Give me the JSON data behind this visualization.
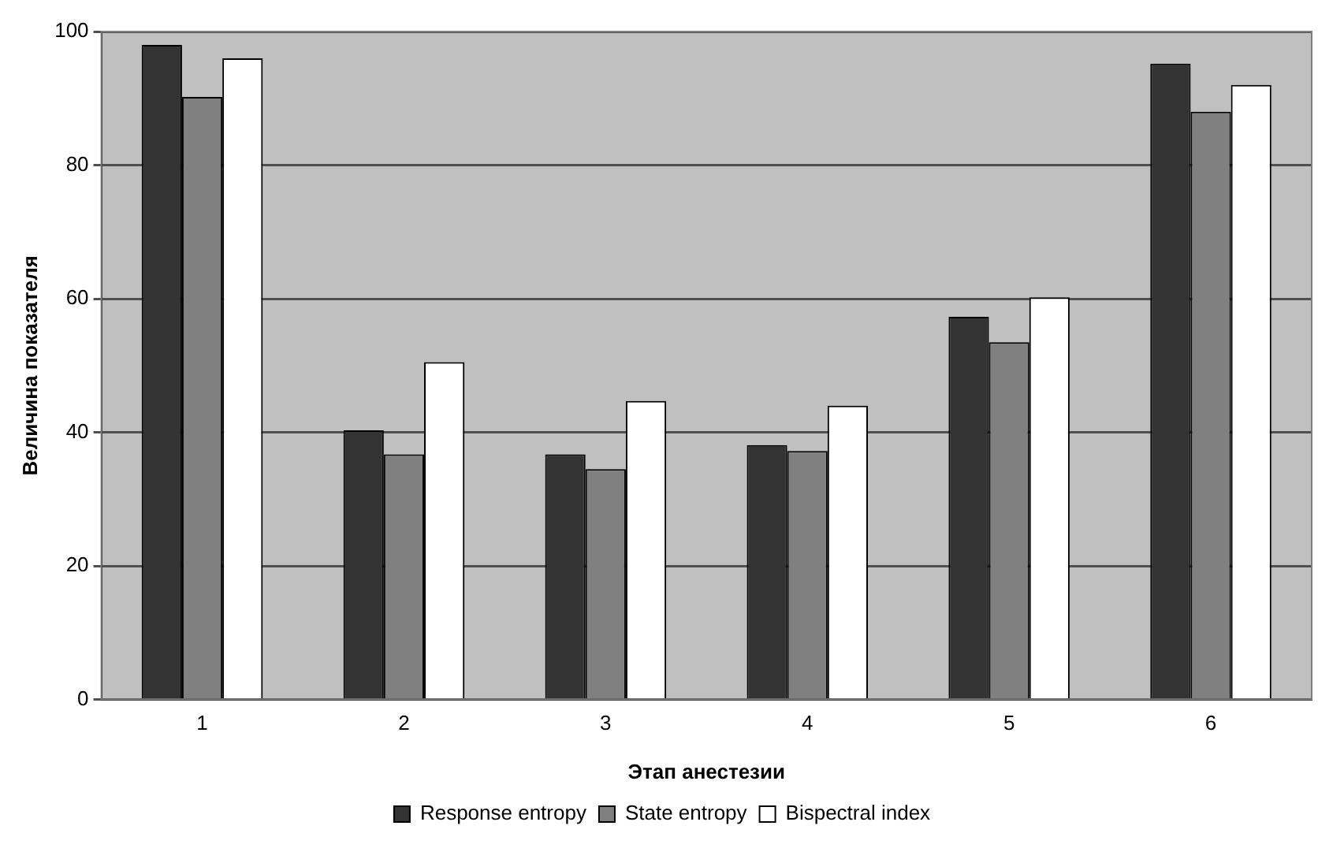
{
  "chart_data": {
    "type": "bar",
    "xlabel": "Этап анестезии",
    "ylabel": "Величина показателя",
    "categories": [
      "1",
      "2",
      "3",
      "4",
      "5",
      "6"
    ],
    "series": [
      {
        "name": "Response entropy",
        "color": "#333333",
        "values": [
          98,
          40.3,
          36.7,
          38.1,
          57.3,
          95.2
        ]
      },
      {
        "name": "State entropy",
        "color": "#808080",
        "values": [
          90.2,
          36.7,
          34.5,
          37.2,
          53.5,
          88
        ]
      },
      {
        "name": "Bispectral index",
        "color": "#ffffff",
        "values": [
          96,
          50.5,
          44.7,
          44,
          60.2,
          92
        ]
      }
    ],
    "ylim": [
      0,
      100
    ],
    "yticks": [
      0,
      20,
      40,
      60,
      80,
      100
    ],
    "grid": "y",
    "legend": "bottom"
  }
}
